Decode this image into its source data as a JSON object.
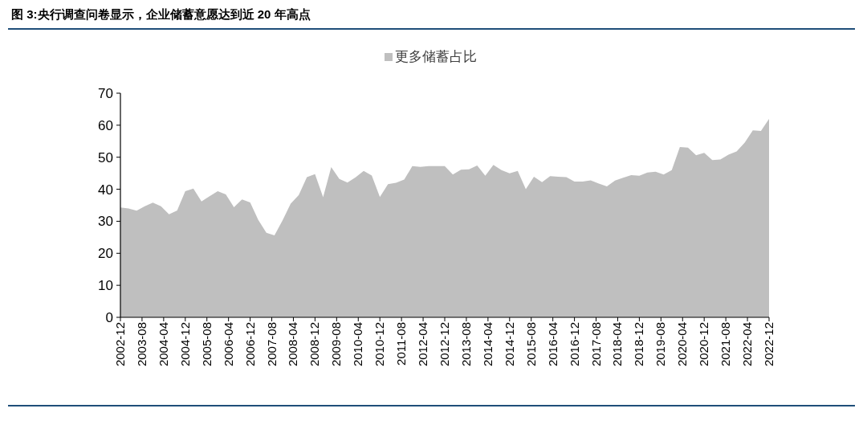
{
  "chart_data": {
    "type": "area",
    "title": "图 3:央行调查问卷显示，企业储蓄意愿达到近 20 年高点",
    "x": [
      "2002-12",
      "2003-03",
      "2003-06",
      "2003-09",
      "2003-12",
      "2004-03",
      "2004-06",
      "2004-09",
      "2004-12",
      "2005-03",
      "2005-06",
      "2005-09",
      "2005-12",
      "2006-03",
      "2006-06",
      "2006-09",
      "2006-12",
      "2007-03",
      "2007-06",
      "2007-09",
      "2007-12",
      "2008-03",
      "2008-06",
      "2008-09",
      "2008-12",
      "2009-03",
      "2009-06",
      "2009-09",
      "2009-12",
      "2010-03",
      "2010-06",
      "2010-09",
      "2010-12",
      "2011-03",
      "2011-06",
      "2011-09",
      "2011-12",
      "2012-03",
      "2012-06",
      "2012-09",
      "2012-12",
      "2013-03",
      "2013-06",
      "2013-09",
      "2013-12",
      "2014-03",
      "2014-06",
      "2014-09",
      "2014-12",
      "2015-03",
      "2015-06",
      "2015-09",
      "2015-12",
      "2016-03",
      "2016-06",
      "2016-09",
      "2016-12",
      "2017-03",
      "2017-06",
      "2017-09",
      "2017-12",
      "2018-03",
      "2018-06",
      "2018-09",
      "2018-12",
      "2019-03",
      "2019-06",
      "2019-09",
      "2019-12",
      "2020-03",
      "2020-06",
      "2020-09",
      "2020-12",
      "2021-03",
      "2021-06",
      "2021-09",
      "2021-12",
      "2022-03",
      "2022-06",
      "2022-09",
      "2022-12"
    ],
    "series": [
      {
        "name": "更多储蓄占比",
        "color": "#bfbfbf",
        "values": [
          34.3,
          34.0,
          33.3,
          34.7,
          35.8,
          34.7,
          32.2,
          33.4,
          39.4,
          40.2,
          36.2,
          37.8,
          39.4,
          38.4,
          34.4,
          36.8,
          35.9,
          30.4,
          26.4,
          25.6,
          30.3,
          35.5,
          38.2,
          43.8,
          44.7,
          37.5,
          46.9,
          43.2,
          42.1,
          43.7,
          45.7,
          44.3,
          37.6,
          41.6,
          42.0,
          43.0,
          47.2,
          47.0,
          47.2,
          47.2,
          47.2,
          44.6,
          46.1,
          46.2,
          47.4,
          44.2,
          47.6,
          46.0,
          45.0,
          45.7,
          40.0,
          43.9,
          42.2,
          44.1,
          43.9,
          43.8,
          42.4,
          42.4,
          42.8,
          41.8,
          40.9,
          42.7,
          43.6,
          44.4,
          44.2,
          45.2,
          45.5,
          44.6,
          46.0,
          53.2,
          53.0,
          50.6,
          51.4,
          49.1,
          49.3,
          50.8,
          51.8,
          54.6,
          58.4,
          58.2,
          62.0
        ]
      }
    ],
    "xlim": [
      "2002-12",
      "2022-12"
    ],
    "xticks": [
      {
        "value": "2002-12",
        "label": "2002-12"
      },
      {
        "value": "2003-08",
        "label": "2003-08"
      },
      {
        "value": "2004-04",
        "label": "2004-04"
      },
      {
        "value": "2004-12",
        "label": "2004-12"
      },
      {
        "value": "2005-08",
        "label": "2005-08"
      },
      {
        "value": "2006-04",
        "label": "2006-04"
      },
      {
        "value": "2006-12",
        "label": "2006-12"
      },
      {
        "value": "2007-08",
        "label": "2007-08"
      },
      {
        "value": "2008-04",
        "label": "2008-04"
      },
      {
        "value": "2008-12",
        "label": "2008-12"
      },
      {
        "value": "2009-08",
        "label": "2009-08"
      },
      {
        "value": "2010-04",
        "label": "2010-04"
      },
      {
        "value": "2010-12",
        "label": "2010-12"
      },
      {
        "value": "2011-08",
        "label": "2011-08"
      },
      {
        "value": "2012-04",
        "label": "2012-04"
      },
      {
        "value": "2012-12",
        "label": "2012-12"
      },
      {
        "value": "2013-08",
        "label": "2013-08"
      },
      {
        "value": "2014-04",
        "label": "2014-04"
      },
      {
        "value": "2014-12",
        "label": "2014-12"
      },
      {
        "value": "2015-08",
        "label": "2015-08"
      },
      {
        "value": "2016-04",
        "label": "2016-04"
      },
      {
        "value": "2016-12",
        "label": "2016-12"
      },
      {
        "value": "2017-08",
        "label": "2017-08"
      },
      {
        "value": "2018-04",
        "label": "2018-04"
      },
      {
        "value": "2018-12",
        "label": "2018-12"
      },
      {
        "value": "2019-08",
        "label": "2019-08"
      },
      {
        "value": "2020-04",
        "label": "2020-04"
      },
      {
        "value": "2020-12",
        "label": "2020-12"
      },
      {
        "value": "2021-08",
        "label": "2021-08"
      },
      {
        "value": "2022-04",
        "label": "2022-04"
      },
      {
        "value": "2022-12",
        "label": "2022-12"
      }
    ],
    "ylim": [
      0,
      70
    ],
    "yticks": [
      0,
      10,
      20,
      30,
      40,
      50,
      60,
      70
    ],
    "grid": false,
    "legend": "top"
  }
}
